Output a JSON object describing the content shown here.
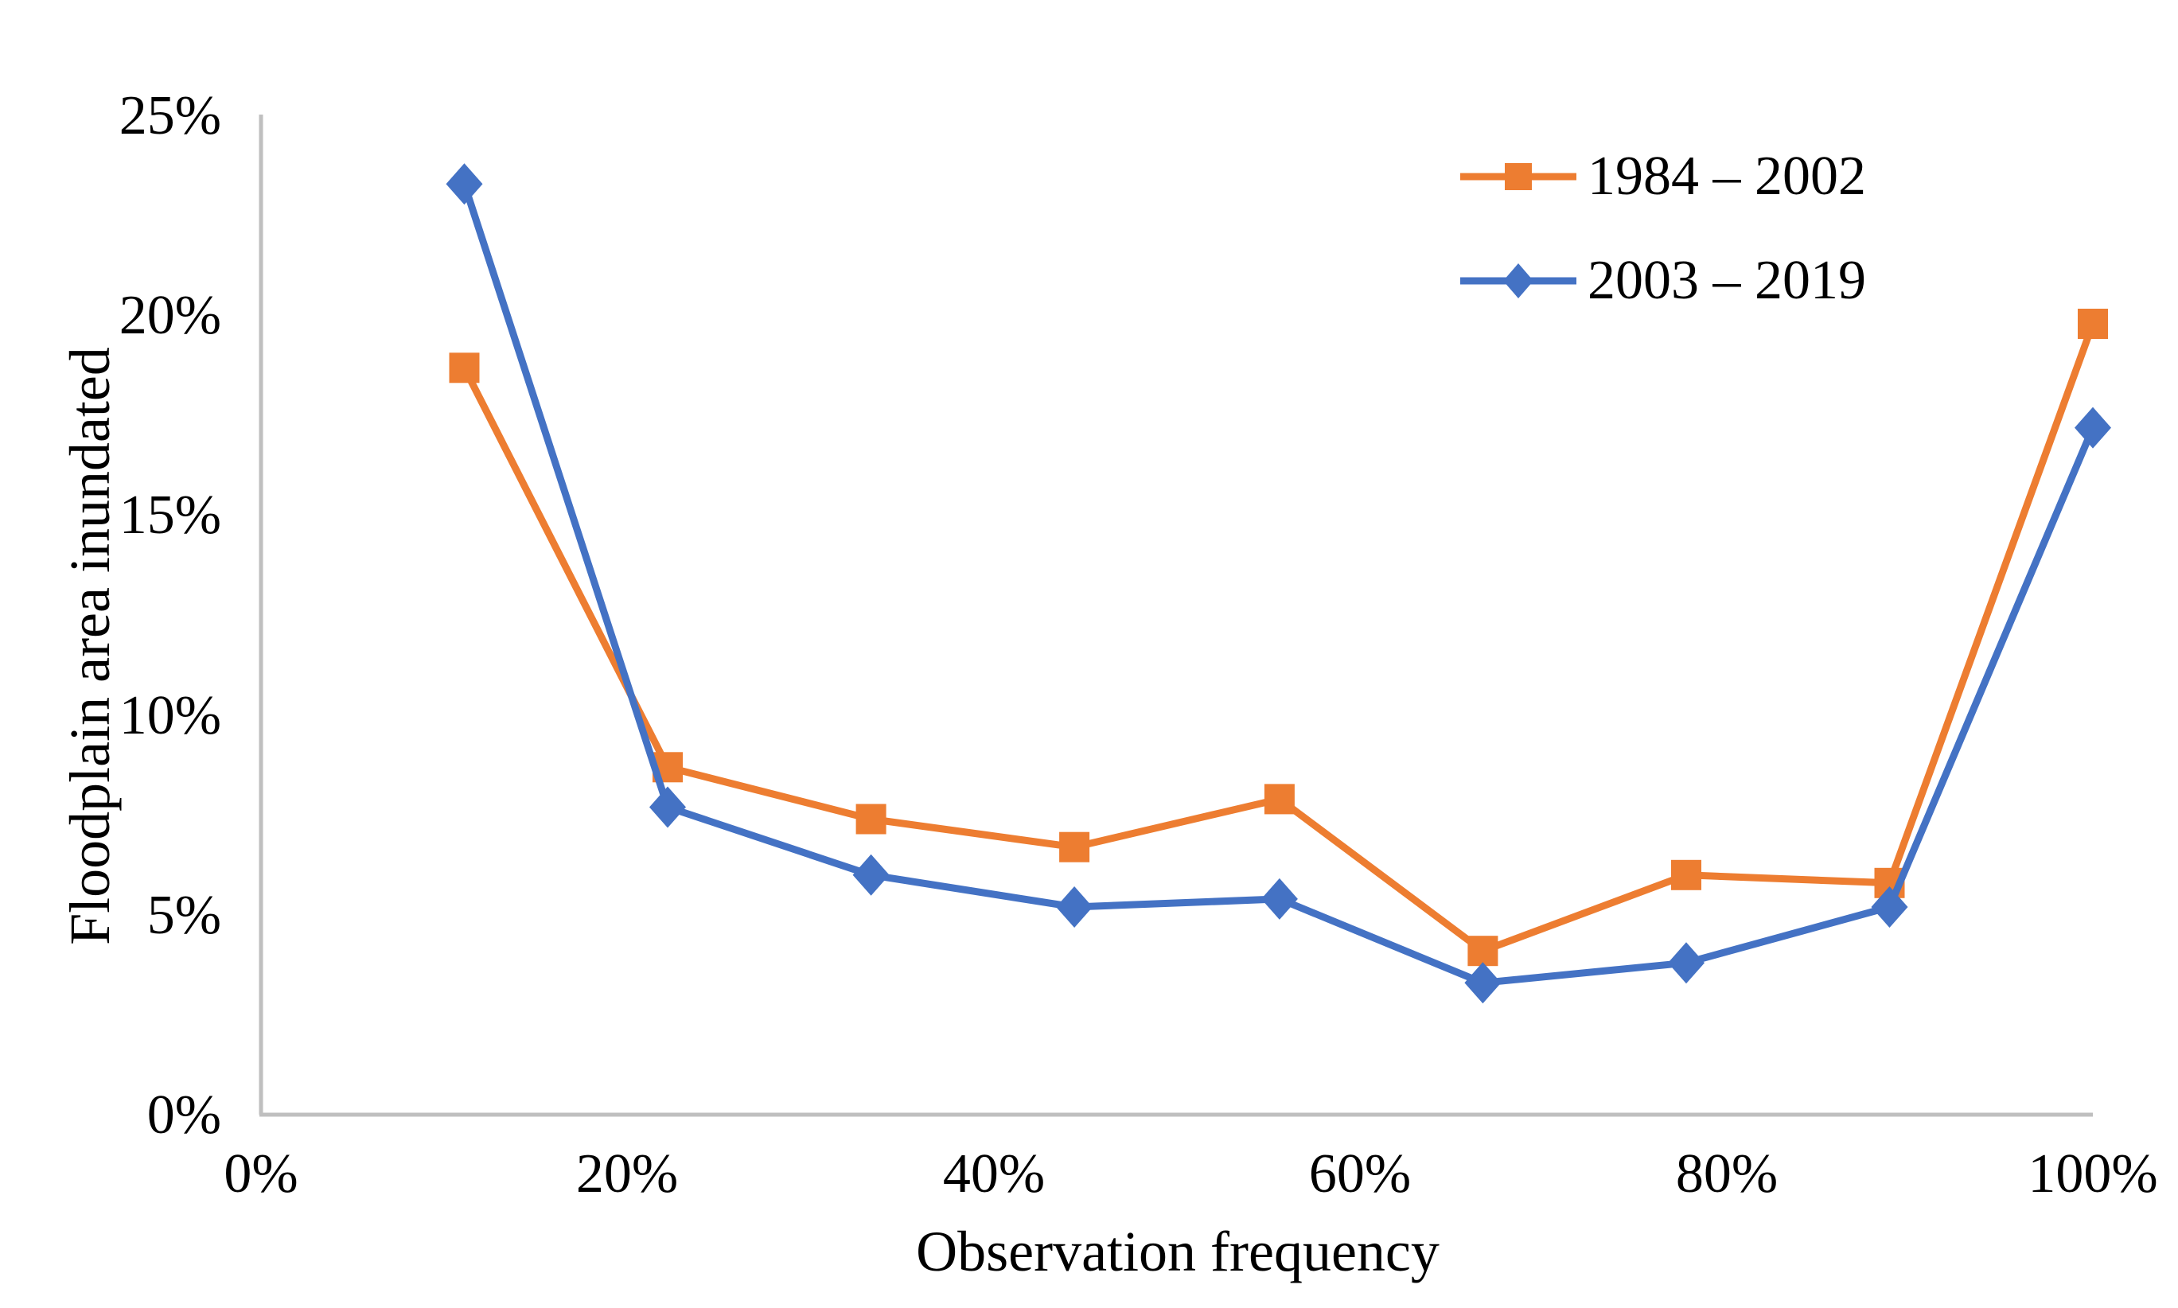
{
  "chart_data": {
    "type": "line",
    "title": "",
    "xlabel": "Observation frequency",
    "ylabel": "Floodplain area inundated",
    "xlim": [
      0,
      100
    ],
    "ylim": [
      0,
      25
    ],
    "grid": false,
    "legend_position": "top-right",
    "axis_color": "#BFBFBF",
    "text_color": "#000000",
    "x_tick_labels": [
      "0%",
      "20%",
      "40%",
      "60%",
      "80%",
      "100%"
    ],
    "x_tick_values": [
      0,
      20,
      40,
      60,
      80,
      100
    ],
    "y_tick_labels": [
      "0%",
      "5%",
      "10%",
      "15%",
      "20%",
      "25%"
    ],
    "y_tick_values": [
      0,
      5,
      10,
      15,
      20,
      25
    ],
    "x_percent": [
      11.1,
      22.2,
      33.3,
      44.4,
      55.6,
      66.7,
      77.8,
      88.9,
      100
    ],
    "series": [
      {
        "name": "1984 – 2002",
        "marker": "square",
        "color": "#ED7D31",
        "values": [
          18.7,
          8.7,
          7.4,
          6.7,
          7.9,
          4.1,
          6.0,
          5.8,
          19.8
        ]
      },
      {
        "name": "2003 – 2019",
        "marker": "diamond",
        "color": "#4472C4",
        "values": [
          23.3,
          7.7,
          6.0,
          5.2,
          5.4,
          3.3,
          3.8,
          5.2,
          17.2
        ]
      }
    ]
  }
}
